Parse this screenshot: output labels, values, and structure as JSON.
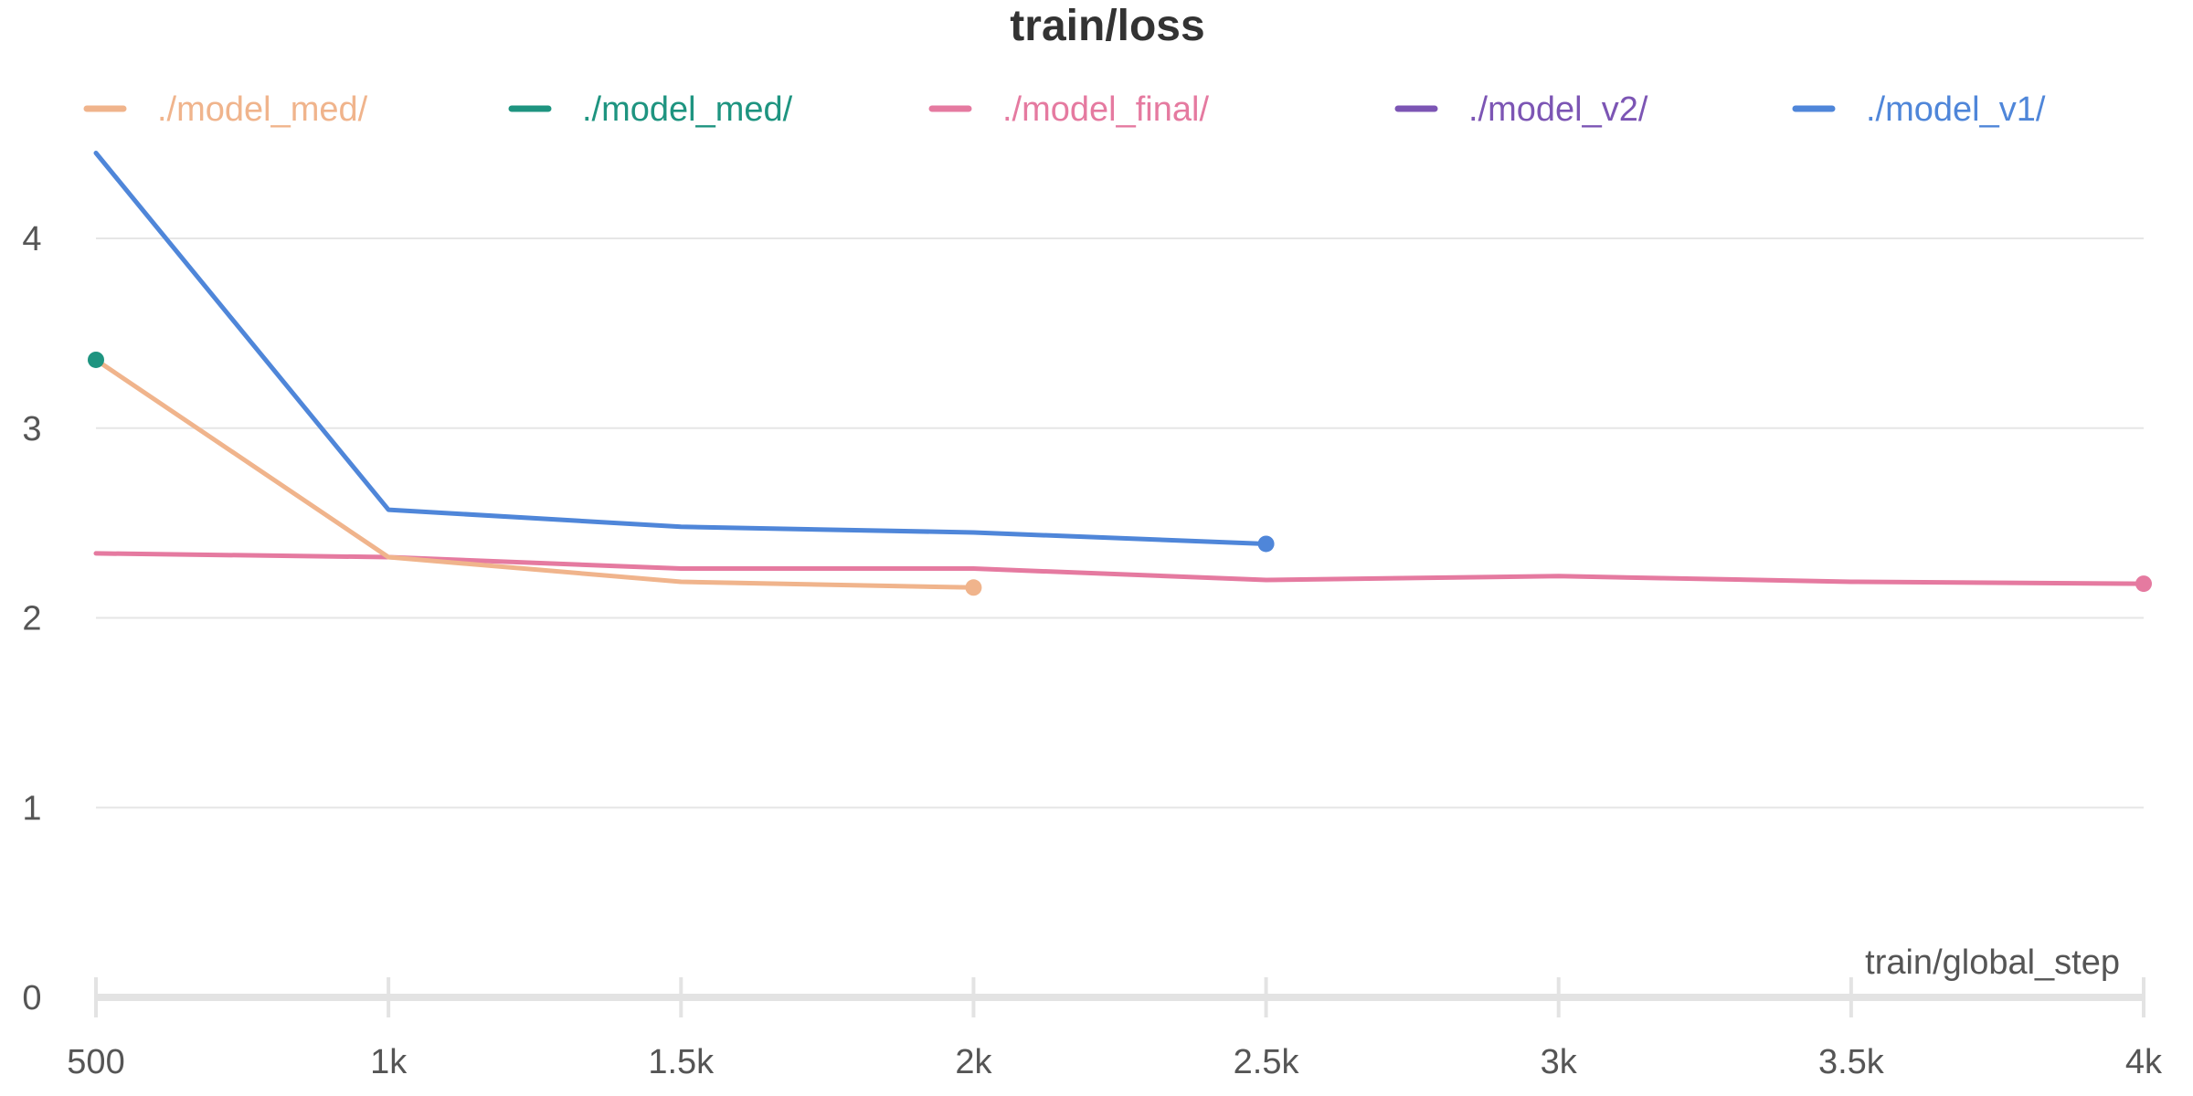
{
  "chart_data": {
    "type": "line",
    "title": "train/loss",
    "xlabel": "train/global_step",
    "ylabel": "",
    "xlim": [
      500,
      4000
    ],
    "ylim": [
      0,
      4.4
    ],
    "grid": true,
    "legend_position": "top",
    "x_ticks": [
      {
        "value": 500,
        "label": "500"
      },
      {
        "value": 1000,
        "label": "1k"
      },
      {
        "value": 1500,
        "label": "1.5k"
      },
      {
        "value": 2000,
        "label": "2k"
      },
      {
        "value": 2500,
        "label": "2.5k"
      },
      {
        "value": 3000,
        "label": "3k"
      },
      {
        "value": 3500,
        "label": "3.5k"
      },
      {
        "value": 4000,
        "label": "4k"
      }
    ],
    "y_ticks": [
      {
        "value": 0,
        "label": "0"
      },
      {
        "value": 1,
        "label": "1"
      },
      {
        "value": 2,
        "label": "2"
      },
      {
        "value": 3,
        "label": "3"
      },
      {
        "value": 4,
        "label": "4"
      }
    ],
    "series": [
      {
        "name": "./model_med/",
        "color": "#f0b48c",
        "x": [
          500,
          1000,
          1500,
          2000
        ],
        "y": [
          3.36,
          2.32,
          2.19,
          2.16
        ]
      },
      {
        "name": "./model_med/",
        "color": "#1e9480",
        "x": [
          500
        ],
        "y": [
          3.36
        ]
      },
      {
        "name": "./model_final/",
        "color": "#e57aa0",
        "x": [
          500,
          1000,
          1500,
          2000,
          2500,
          3000,
          3500,
          4000
        ],
        "y": [
          2.34,
          2.32,
          2.26,
          2.26,
          2.2,
          2.22,
          2.19,
          2.18
        ]
      },
      {
        "name": "./model_v2/",
        "color": "#7c55b4",
        "x": [],
        "y": []
      },
      {
        "name": "./model_v1/",
        "color": "#4f86d9",
        "x": [
          500,
          1000,
          1500,
          2000,
          2500
        ],
        "y": [
          4.45,
          2.57,
          2.48,
          2.45,
          2.39
        ]
      }
    ]
  }
}
